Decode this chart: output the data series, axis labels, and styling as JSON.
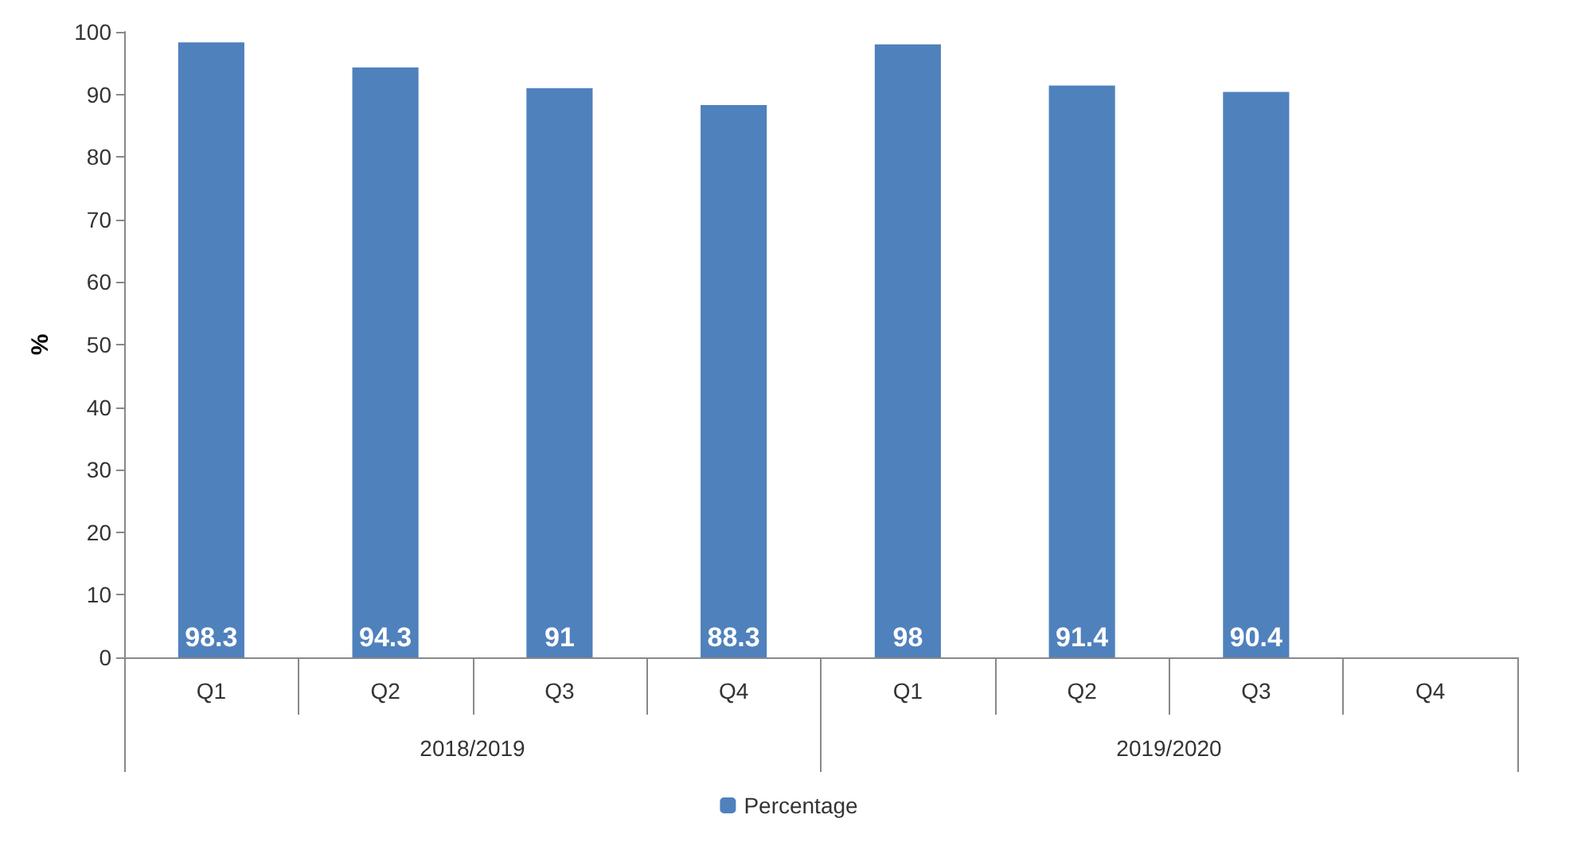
{
  "chart_data": {
    "type": "bar",
    "ylabel": "%",
    "categories": [
      "Q1",
      "Q2",
      "Q3",
      "Q4",
      "Q1",
      "Q2",
      "Q3",
      "Q4"
    ],
    "series": [
      {
        "name": "Percentage",
        "color": "#4f81bd",
        "values": [
          98.3,
          94.3,
          91,
          88.3,
          98,
          91.4,
          90.4,
          null
        ]
      }
    ],
    "ylim": [
      0,
      100
    ],
    "yticks": [
      0,
      10,
      20,
      30,
      40,
      50,
      60,
      70,
      80,
      90,
      100
    ],
    "grid": false,
    "legend": "bottom",
    "data_labels": true,
    "annotations": [
      "2018/2019",
      "2019/2020"
    ]
  }
}
